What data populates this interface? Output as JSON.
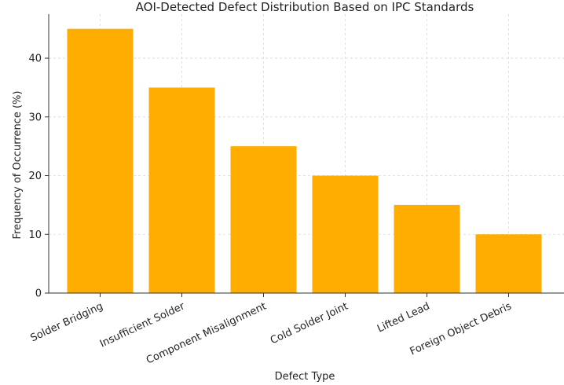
{
  "chart_data": {
    "type": "bar",
    "title": "AOI-Detected Defect Distribution Based on IPC Standards",
    "xlabel": "Defect Type",
    "ylabel": "Frequency of Occurrence (%)",
    "categories": [
      "Solder Bridging",
      "Insufficient Solder",
      "Component Misalignment",
      "Cold Solder Joint",
      "Lifted Lead",
      "Foreign Object Debris"
    ],
    "values": [
      45,
      35,
      25,
      20,
      15,
      10
    ],
    "ylim": [
      0,
      47.5
    ],
    "yticks": [
      0,
      10,
      20,
      30,
      40
    ],
    "bar_color": "#FFAD00",
    "grid": true,
    "legend": "none"
  }
}
